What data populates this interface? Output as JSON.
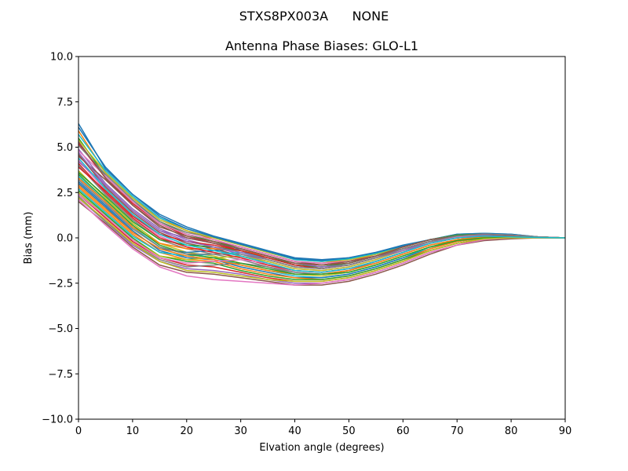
{
  "figure": {
    "suptitle": "STXS8PX003A      NONE"
  },
  "chart_data": {
    "type": "line",
    "title": "Antenna Phase Biases: GLO-L1",
    "xlabel": "Elvation angle (degrees)",
    "ylabel": "Bias (mm)",
    "xlim": [
      0,
      90
    ],
    "ylim": [
      -10,
      10
    ],
    "xticks": [
      0,
      10,
      20,
      30,
      40,
      50,
      60,
      70,
      80,
      90
    ],
    "yticks": [
      -10.0,
      -7.5,
      -5.0,
      -2.5,
      0.0,
      2.5,
      5.0,
      7.5,
      10.0
    ],
    "xtick_labels": [
      "0",
      "10",
      "20",
      "30",
      "40",
      "50",
      "60",
      "70",
      "80",
      "90"
    ],
    "ytick_labels": [
      "−10.0",
      "−7.5",
      "−5.0",
      "−2.5",
      "0.0",
      "2.5",
      "5.0",
      "7.5",
      "10.0"
    ],
    "grid": false,
    "legend": "none",
    "x": [
      0,
      5,
      10,
      15,
      20,
      25,
      30,
      35,
      40,
      45,
      50,
      55,
      60,
      65,
      70,
      75,
      80,
      85,
      90
    ],
    "color_cycle": [
      "#1f77b4",
      "#ff7f0e",
      "#2ca02c",
      "#d62728",
      "#9467bd",
      "#8c564b",
      "#e377c2",
      "#7f7f7f",
      "#bcbd22",
      "#17becf"
    ],
    "series": [
      {
        "values": [
          6.3,
          3.8,
          2.4,
          1.3,
          0.6,
          0.1,
          -0.3,
          -0.7,
          -1.1,
          -1.2,
          -1.1,
          -0.8,
          -0.4,
          -0.1,
          0.1,
          0.2,
          0.1,
          0.05,
          0
        ]
      },
      {
        "values": [
          5.9,
          3.6,
          2.2,
          1.1,
          0.4,
          -0.1,
          -0.5,
          -0.9,
          -1.3,
          -1.4,
          -1.2,
          -0.9,
          -0.5,
          -0.1,
          0.1,
          0.15,
          0.1,
          0.05,
          0
        ]
      },
      {
        "values": [
          5.5,
          3.4,
          2.0,
          0.9,
          0.2,
          -0.2,
          -0.6,
          -1.0,
          -1.5,
          -1.6,
          -1.4,
          -1.0,
          -0.6,
          -0.2,
          0.1,
          0.2,
          0.1,
          0.05,
          0
        ]
      },
      {
        "values": [
          5.2,
          3.3,
          1.9,
          0.8,
          0.1,
          -0.3,
          -0.7,
          -1.2,
          -1.6,
          -1.7,
          -1.5,
          -1.1,
          -0.6,
          -0.2,
          0.05,
          0.15,
          0.1,
          0.05,
          0
        ]
      },
      {
        "values": [
          4.9,
          3.0,
          1.6,
          0.5,
          -0.1,
          -0.5,
          -0.9,
          -1.3,
          -1.7,
          -1.8,
          -1.6,
          -1.2,
          -0.7,
          -0.3,
          0.0,
          0.1,
          0.1,
          0.03,
          0
        ]
      },
      {
        "values": [
          4.6,
          2.8,
          1.4,
          0.3,
          -0.3,
          -0.6,
          -1.0,
          -1.4,
          -1.8,
          -1.9,
          -1.7,
          -1.3,
          -0.8,
          -0.3,
          0.0,
          0.1,
          0.05,
          0.03,
          0
        ]
      },
      {
        "values": [
          4.3,
          2.6,
          1.2,
          0.1,
          -0.5,
          -0.8,
          -1.1,
          -1.5,
          -1.9,
          -2.0,
          -1.8,
          -1.4,
          -0.9,
          -0.4,
          -0.1,
          0.1,
          0.05,
          0.02,
          0
        ]
      },
      {
        "values": [
          4.0,
          2.4,
          1.0,
          -0.1,
          -0.6,
          -0.9,
          -1.2,
          -1.6,
          -2.0,
          -2.0,
          -1.8,
          -1.4,
          -0.9,
          -0.4,
          -0.1,
          0.05,
          0.05,
          0.02,
          0
        ]
      },
      {
        "values": [
          3.7,
          2.2,
          0.8,
          -0.3,
          -0.8,
          -1.0,
          -1.4,
          -1.7,
          -2.0,
          -2.1,
          -1.9,
          -1.5,
          -1.0,
          -0.5,
          -0.1,
          0.05,
          0.05,
          0.02,
          0
        ]
      },
      {
        "values": [
          3.4,
          2.0,
          0.6,
          -0.5,
          -0.9,
          -1.1,
          -1.5,
          -1.8,
          -2.1,
          -2.2,
          -2.0,
          -1.6,
          -1.1,
          -0.5,
          -0.2,
          0.0,
          0.03,
          0.01,
          0
        ]
      },
      {
        "values": [
          3.1,
          1.8,
          0.4,
          -0.7,
          -1.1,
          -1.2,
          -1.6,
          -1.9,
          -2.2,
          -2.2,
          -2.0,
          -1.6,
          -1.1,
          -0.6,
          -0.2,
          0.0,
          0.02,
          0.01,
          0
        ]
      },
      {
        "values": [
          2.8,
          1.5,
          0.2,
          -0.8,
          -1.2,
          -1.3,
          -1.7,
          -2.0,
          -2.2,
          -2.3,
          -2.1,
          -1.7,
          -1.2,
          -0.6,
          -0.2,
          0.0,
          0.02,
          0.01,
          0
        ]
      },
      {
        "values": [
          2.6,
          1.3,
          0.0,
          -1.0,
          -1.3,
          -1.4,
          -1.8,
          -2.1,
          -2.3,
          -2.3,
          -2.1,
          -1.7,
          -1.2,
          -0.7,
          -0.3,
          -0.05,
          0.0,
          0.0,
          0
        ]
      },
      {
        "values": [
          2.4,
          1.1,
          -0.2,
          -1.1,
          -1.5,
          -1.6,
          -1.9,
          -2.2,
          -2.4,
          -2.4,
          -2.2,
          -1.8,
          -1.3,
          -0.7,
          -0.3,
          -0.1,
          0.0,
          0.0,
          0
        ]
      },
      {
        "values": [
          2.2,
          0.9,
          -0.4,
          -1.3,
          -1.7,
          -1.8,
          -2.0,
          -2.3,
          -2.5,
          -2.5,
          -2.3,
          -1.9,
          -1.4,
          -0.8,
          -0.4,
          -0.1,
          0.0,
          0.0,
          0
        ]
      },
      {
        "values": [
          2.0,
          0.8,
          -0.5,
          -1.5,
          -1.9,
          -2.0,
          -2.2,
          -2.4,
          -2.6,
          -2.6,
          -2.4,
          -2.0,
          -1.5,
          -0.9,
          -0.4,
          -0.15,
          -0.05,
          0.0,
          0
        ]
      },
      {
        "values": [
          2.1,
          0.7,
          -0.6,
          -1.6,
          -2.1,
          -2.3,
          -2.4,
          -2.5,
          -2.6,
          -2.5,
          -2.3,
          -1.9,
          -1.4,
          -0.8,
          -0.4,
          -0.1,
          0.0,
          0.0,
          0
        ]
      },
      {
        "values": [
          2.3,
          0.9,
          -0.3,
          -1.2,
          -1.6,
          -1.5,
          -1.4,
          -1.6,
          -1.9,
          -2.0,
          -1.8,
          -1.3,
          -0.8,
          -0.3,
          0.1,
          0.2,
          0.15,
          0.05,
          0
        ]
      },
      {
        "values": [
          2.5,
          1.2,
          -0.1,
          -1.0,
          -1.2,
          -1.1,
          -1.0,
          -1.3,
          -1.7,
          -1.8,
          -1.6,
          -1.2,
          -0.7,
          -0.2,
          0.15,
          0.25,
          0.15,
          0.05,
          0
        ]
      },
      {
        "values": [
          2.7,
          1.4,
          0.1,
          -0.8,
          -1.0,
          -0.9,
          -0.8,
          -1.1,
          -1.5,
          -1.6,
          -1.4,
          -1.0,
          -0.5,
          -0.1,
          0.2,
          0.25,
          0.2,
          0.05,
          0
        ]
      },
      {
        "values": [
          3.0,
          1.7,
          0.3,
          -0.6,
          -0.8,
          -0.7,
          -0.6,
          -1.0,
          -1.4,
          -1.5,
          -1.3,
          -0.9,
          -0.5,
          -0.1,
          0.2,
          0.25,
          0.2,
          0.05,
          0
        ]
      },
      {
        "values": [
          3.3,
          2.0,
          0.6,
          -0.3,
          -0.6,
          -0.6,
          -0.7,
          -1.0,
          -1.4,
          -1.5,
          -1.3,
          -0.9,
          -0.5,
          -0.1,
          0.15,
          0.2,
          0.15,
          0.05,
          0
        ]
      },
      {
        "values": [
          3.6,
          2.3,
          0.9,
          -0.1,
          -0.4,
          -0.5,
          -0.7,
          -1.1,
          -1.5,
          -1.6,
          -1.4,
          -1.0,
          -0.5,
          -0.1,
          0.15,
          0.2,
          0.15,
          0.05,
          0
        ]
      },
      {
        "values": [
          3.9,
          2.6,
          1.2,
          0.2,
          -0.2,
          -0.4,
          -0.7,
          -1.1,
          -1.5,
          -1.7,
          -1.5,
          -1.1,
          -0.6,
          -0.2,
          0.1,
          0.2,
          0.1,
          0.04,
          0
        ]
      },
      {
        "values": [
          4.2,
          2.9,
          1.5,
          0.4,
          0.0,
          -0.3,
          -0.6,
          -1.0,
          -1.4,
          -1.6,
          -1.5,
          -1.1,
          -0.6,
          -0.2,
          0.1,
          0.2,
          0.1,
          0.04,
          0
        ]
      },
      {
        "values": [
          4.5,
          3.2,
          1.8,
          0.6,
          0.1,
          -0.2,
          -0.5,
          -0.9,
          -1.3,
          -1.5,
          -1.4,
          -1.0,
          -0.6,
          -0.2,
          0.1,
          0.15,
          0.1,
          0.04,
          0
        ]
      },
      {
        "values": [
          4.8,
          3.4,
          2.0,
          0.8,
          0.2,
          -0.1,
          -0.5,
          -0.9,
          -1.3,
          -1.4,
          -1.3,
          -1.0,
          -0.5,
          -0.1,
          0.1,
          0.15,
          0.1,
          0.04,
          0
        ]
      },
      {
        "values": [
          5.1,
          3.5,
          2.1,
          0.9,
          0.3,
          0.0,
          -0.4,
          -0.8,
          -1.2,
          -1.3,
          -1.2,
          -0.9,
          -0.5,
          -0.1,
          0.1,
          0.15,
          0.1,
          0.03,
          0
        ]
      },
      {
        "values": [
          5.4,
          3.6,
          2.2,
          1.0,
          0.4,
          0.0,
          -0.4,
          -0.8,
          -1.2,
          -1.3,
          -1.2,
          -0.9,
          -0.5,
          -0.1,
          0.1,
          0.15,
          0.1,
          0.03,
          0
        ]
      },
      {
        "values": [
          5.7,
          3.7,
          2.3,
          1.1,
          0.5,
          0.05,
          -0.35,
          -0.75,
          -1.2,
          -1.3,
          -1.15,
          -0.85,
          -0.45,
          -0.1,
          0.1,
          0.15,
          0.1,
          0.03,
          0
        ]
      },
      {
        "values": [
          6.1,
          3.9,
          2.4,
          1.2,
          0.5,
          0.05,
          -0.35,
          -0.75,
          -1.15,
          -1.25,
          -1.1,
          -0.8,
          -0.45,
          -0.1,
          0.1,
          0.2,
          0.1,
          0.04,
          0
        ]
      },
      {
        "values": [
          2.9,
          1.6,
          0.3,
          -0.6,
          -1.0,
          -1.2,
          -1.5,
          -1.8,
          -2.0,
          -2.0,
          -1.8,
          -1.4,
          -0.9,
          -0.4,
          -0.1,
          0.05,
          0.03,
          0.01,
          0
        ]
      },
      {
        "values": [
          3.5,
          2.1,
          0.7,
          -0.4,
          -0.9,
          -1.1,
          -1.4,
          -1.7,
          -2.0,
          -2.0,
          -1.9,
          -1.5,
          -1.0,
          -0.5,
          -0.15,
          0.0,
          0.02,
          0.01,
          0
        ]
      },
      {
        "values": [
          4.1,
          2.5,
          1.1,
          0.0,
          -0.5,
          -0.8,
          -1.1,
          -1.5,
          -1.8,
          -1.9,
          -1.7,
          -1.3,
          -0.8,
          -0.3,
          0.0,
          0.1,
          0.05,
          0.02,
          0
        ]
      },
      {
        "values": [
          4.7,
          2.9,
          1.5,
          0.4,
          -0.2,
          -0.5,
          -0.8,
          -1.2,
          -1.6,
          -1.7,
          -1.5,
          -1.1,
          -0.7,
          -0.2,
          0.05,
          0.15,
          0.1,
          0.03,
          0
        ]
      },
      {
        "values": [
          5.3,
          3.3,
          1.8,
          0.7,
          0.0,
          -0.3,
          -0.6,
          -1.0,
          -1.4,
          -1.5,
          -1.3,
          -1.0,
          -0.5,
          -0.1,
          0.1,
          0.2,
          0.1,
          0.04,
          0
        ]
      },
      {
        "values": [
          2.4,
          1.2,
          -0.1,
          -1.1,
          -1.4,
          -1.3,
          -1.2,
          -1.4,
          -1.8,
          -1.9,
          -1.7,
          -1.3,
          -0.8,
          -0.3,
          0.05,
          0.2,
          0.15,
          0.05,
          0
        ]
      },
      {
        "values": [
          3.2,
          1.9,
          0.5,
          -0.5,
          -0.9,
          -0.9,
          -0.9,
          -1.2,
          -1.6,
          -1.7,
          -1.5,
          -1.1,
          -0.6,
          -0.2,
          0.1,
          0.2,
          0.15,
          0.05,
          0
        ]
      },
      {
        "values": [
          2.2,
          1.0,
          -0.3,
          -1.3,
          -1.8,
          -1.9,
          -2.1,
          -2.3,
          -2.4,
          -2.4,
          -2.2,
          -1.8,
          -1.3,
          -0.7,
          -0.3,
          -0.05,
          0.0,
          0.0,
          0
        ]
      },
      {
        "values": [
          4.4,
          2.7,
          1.3,
          0.2,
          -0.4,
          -0.7,
          -1.0,
          -1.4,
          -1.8,
          -1.9,
          -1.7,
          -1.3,
          -0.8,
          -0.3,
          0.0,
          0.1,
          0.05,
          0.02,
          0
        ]
      }
    ]
  }
}
